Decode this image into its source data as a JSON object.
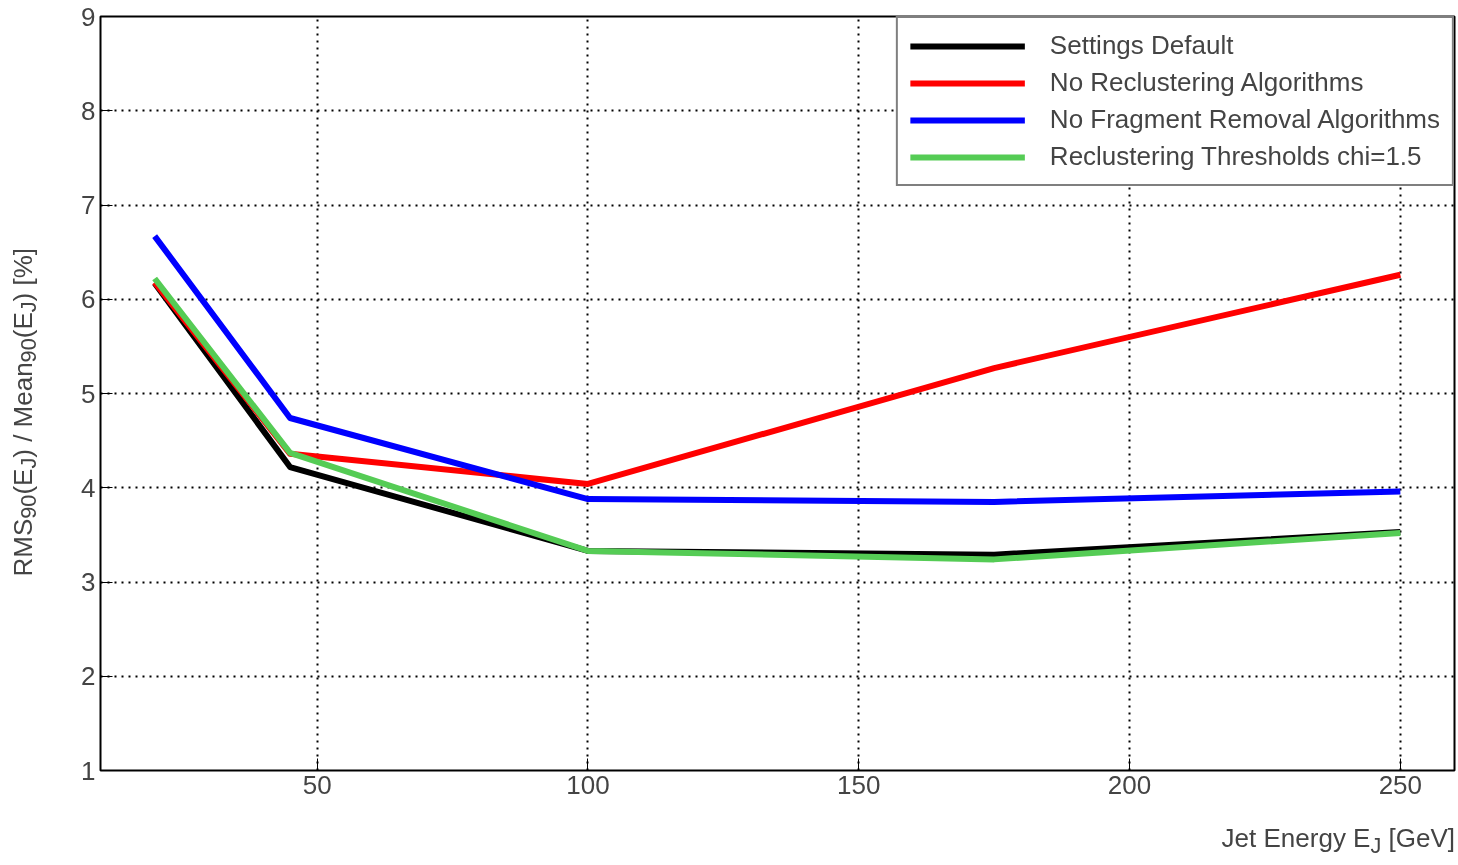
{
  "chart_data": {
    "type": "line",
    "xlabel": "Jet Energy E$_{J}$ [GeV]",
    "ylabel": "RMS$_{90}$(E$_{J}$) / Mean$_{90}$(E$_{J}$) [%]",
    "x": [
      20,
      45,
      100,
      175,
      250
    ],
    "series": [
      {
        "name": "Settings Default",
        "color": "#000000",
        "values": [
          6.17,
          4.22,
          3.33,
          3.29,
          3.53
        ]
      },
      {
        "name": "No Reclustering Algorithms",
        "color": "#ff0000",
        "values": [
          6.18,
          4.36,
          4.04,
          5.27,
          6.26
        ]
      },
      {
        "name": "No Fragment Removal Algorithms",
        "color": "#0000ff",
        "values": [
          6.67,
          4.74,
          3.88,
          3.85,
          3.96
        ]
      },
      {
        "name": "Reclustering Thresholds chi=1.5",
        "color": "#55cc55",
        "values": [
          6.22,
          4.37,
          3.33,
          3.24,
          3.52
        ]
      }
    ],
    "xlim": [
      10,
      260
    ],
    "xticks": [
      50,
      100,
      150,
      200,
      250
    ],
    "ylim": [
      1,
      9
    ],
    "yticks": [
      1,
      2,
      3,
      4,
      5,
      6,
      7,
      8,
      9
    ],
    "grid": true,
    "legend": "top right",
    "line_style": "solid",
    "marker": "none"
  }
}
